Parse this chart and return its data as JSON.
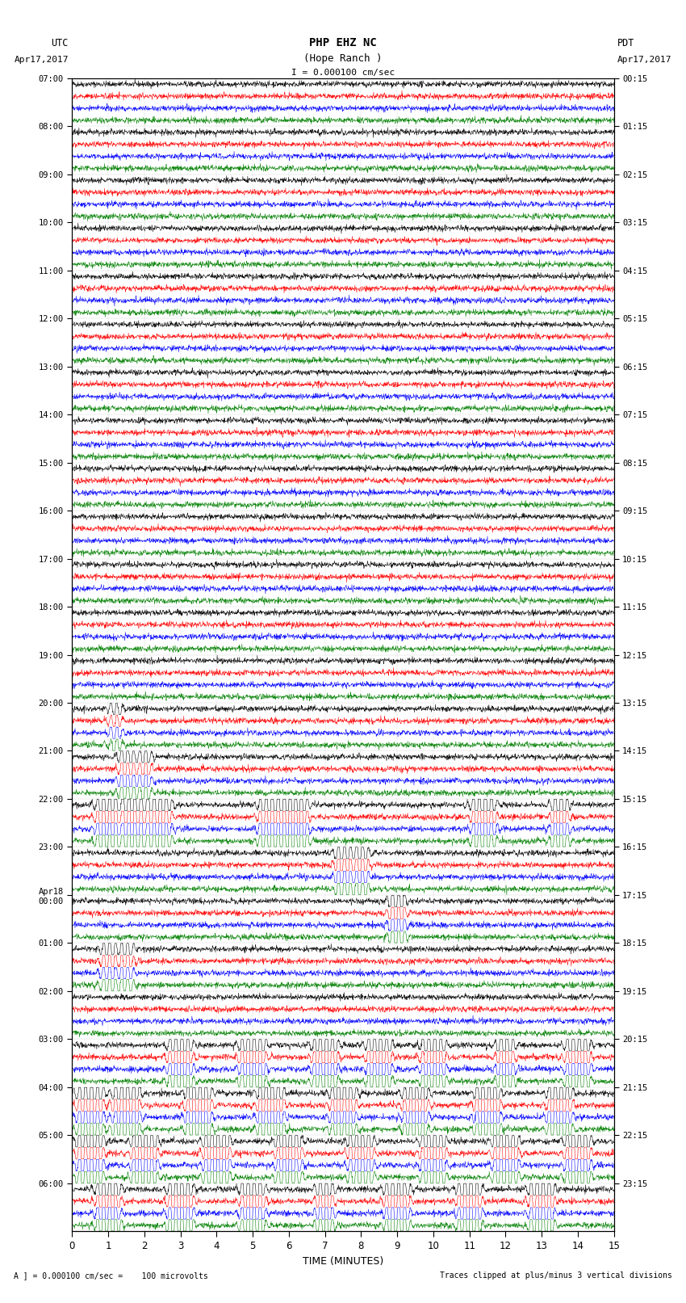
{
  "title_line1": "PHP EHZ NC",
  "title_line2": "(Hope Ranch )",
  "scale_text": "I = 0.000100 cm/sec",
  "left_label": "UTC",
  "left_date": "Apr17,2017",
  "right_label": "PDT",
  "right_date": "Apr17,2017",
  "xlabel": "TIME (MINUTES)",
  "bottom_left_text": "A ] = 0.000100 cm/sec =    100 microvolts",
  "bottom_right_text": "Traces clipped at plus/minus 3 vertical divisions",
  "xmin": 0,
  "xmax": 15,
  "trace_colors": [
    "black",
    "red",
    "blue",
    "green"
  ],
  "utc_labels": [
    "07:00",
    "08:00",
    "09:00",
    "10:00",
    "11:00",
    "12:00",
    "13:00",
    "14:00",
    "15:00",
    "16:00",
    "17:00",
    "18:00",
    "19:00",
    "20:00",
    "21:00",
    "22:00",
    "23:00",
    "Apr18\n00:00",
    "01:00",
    "02:00",
    "03:00",
    "04:00",
    "05:00",
    "06:00"
  ],
  "pdt_labels": [
    "00:15",
    "01:15",
    "02:15",
    "03:15",
    "04:15",
    "05:15",
    "06:15",
    "07:15",
    "08:15",
    "09:15",
    "10:15",
    "11:15",
    "12:15",
    "13:15",
    "14:15",
    "15:15",
    "16:15",
    "17:15",
    "18:15",
    "19:15",
    "20:15",
    "21:15",
    "22:15",
    "23:15"
  ],
  "n_rows": 24,
  "traces_per_row": 4,
  "noise_amplitude": 0.12,
  "background_color": "white",
  "fig_width": 8.5,
  "fig_height": 16.13
}
